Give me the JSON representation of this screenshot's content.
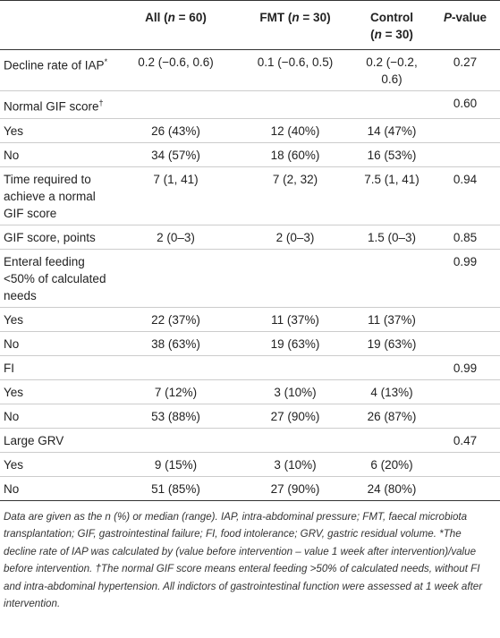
{
  "header": [
    "All (",
    "n",
    " = 60)",
    "FMT (",
    "n",
    " = 30)",
    "Control",
    "(",
    "n",
    " = 30)",
    "P",
    "-value"
  ],
  "rows": [
    {
      "label": "Decline rate of IAP",
      "mark": "*",
      "cells": [
        "0.2 (−0.6, 0.6)",
        "0.1 (−0.6, 0.5)",
        "0.2 (−0.2, 0.6)",
        "0.27"
      ]
    },
    {
      "label": "Normal GIF score",
      "mark": "†",
      "cells": [
        null,
        null,
        null,
        "0.60"
      ]
    },
    {
      "label": "Yes",
      "cells": [
        "26 (43%)",
        "12 (40%)",
        "14 (47%)",
        null
      ]
    },
    {
      "label": "No",
      "cells": [
        "34 (57%)",
        "18 (60%)",
        "16 (53%)",
        null
      ]
    },
    {
      "label": "Time required to achieve a normal GIF score",
      "cells": [
        "7 (1, 41)",
        "7 (2, 32)",
        "7.5 (1, 41)",
        "0.94"
      ]
    },
    {
      "label": "GIF score, points",
      "cells": [
        "2 (0–3)",
        "2 (0–3)",
        "1.5 (0–3)",
        "0.85"
      ]
    },
    {
      "label": "Enteral feeding <50% of calculated needs",
      "cells": [
        null,
        null,
        null,
        "0.99"
      ]
    },
    {
      "label": "Yes",
      "cells": [
        "22 (37%)",
        "11 (37%)",
        "11 (37%)",
        null
      ]
    },
    {
      "label": "No",
      "cells": [
        "38 (63%)",
        "19 (63%)",
        "19 (63%)",
        null
      ]
    },
    {
      "label": "FI",
      "cells": [
        null,
        null,
        null,
        "0.99"
      ]
    },
    {
      "label": "Yes",
      "cells": [
        "7 (12%)",
        "3 (10%)",
        "4 (13%)",
        null
      ]
    },
    {
      "label": "No",
      "cells": [
        "53 (88%)",
        "27 (90%)",
        "26 (87%)",
        null
      ]
    },
    {
      "label": "Large GRV",
      "cells": [
        null,
        null,
        null,
        "0.47"
      ]
    },
    {
      "label": "Yes",
      "cells": [
        "9 (15%)",
        "3 (10%)",
        "6 (20%)",
        null
      ]
    },
    {
      "label": "No",
      "cells": [
        "51 (85%)",
        "27 (90%)",
        "24 (80%)",
        null
      ]
    }
  ],
  "footnote": "Data are given as the n (%) or median (range). IAP, intra-abdominal pressure; FMT, faecal microbiota transplantation; GIF, gastrointestinal failure; FI, food intolerance; GRV, gastric residual volume. *The decline rate of IAP was calculated by (value before intervention – value 1 week after intervention)/value before intervention. †The normal GIF score means enteral feeding >50% of calculated needs, without FI and intra-abdominal hypertension. All indictors of gastrointestinal function were assessed at 1 week after intervention."
}
